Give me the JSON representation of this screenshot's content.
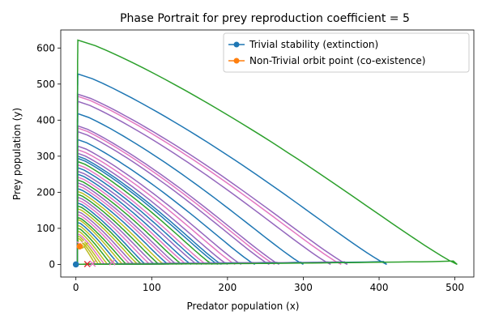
{
  "chart_data": {
    "type": "line",
    "title": "Phase Portrait for prey reproduction coefficient = 5",
    "xlabel": "Predator population (x)",
    "ylabel": "Prey population (y)",
    "xlim": [
      -20,
      525
    ],
    "ylim": [
      -35,
      650
    ],
    "xticks": [
      0,
      100,
      200,
      300,
      400,
      500
    ],
    "yticks": [
      0,
      100,
      200,
      300,
      400,
      500,
      600
    ],
    "grid": false,
    "legend_position": "top-right",
    "legend": [
      {
        "label": "Trivial stability (extinction)",
        "color": "#1f77b4",
        "marker": "circle"
      },
      {
        "label": "Non-Trivial orbit point (co-existence)",
        "color": "#ff7f0e",
        "marker": "circle"
      }
    ],
    "orbits": [
      {
        "color": "#2ca02c",
        "x_max": 503,
        "y_max": 622
      },
      {
        "color": "#1f77b4",
        "x_max": 410,
        "y_max": 528
      },
      {
        "color": "#9467bd",
        "x_max": 358,
        "y_max": 472
      },
      {
        "color": "#e377c2",
        "x_max": 350,
        "y_max": 466
      },
      {
        "color": "#9467bd",
        "x_max": 336,
        "y_max": 452
      },
      {
        "color": "#1f77b4",
        "x_max": 300,
        "y_max": 418
      },
      {
        "color": "#9467bd",
        "x_max": 268,
        "y_max": 384
      },
      {
        "color": "#e377c2",
        "x_max": 262,
        "y_max": 378
      },
      {
        "color": "#9467bd",
        "x_max": 255,
        "y_max": 368
      },
      {
        "color": "#1f77b4",
        "x_max": 236,
        "y_max": 346
      },
      {
        "color": "#9467bd",
        "x_max": 218,
        "y_max": 328
      },
      {
        "color": "#e377c2",
        "x_max": 210,
        "y_max": 318
      },
      {
        "color": "#9467bd",
        "x_max": 200,
        "y_max": 308
      },
      {
        "color": "#1f77b4",
        "x_max": 192,
        "y_max": 300
      },
      {
        "color": "#1f77b4",
        "x_max": 187,
        "y_max": 294
      },
      {
        "color": "#2ca02c",
        "x_max": 180,
        "y_max": 285
      },
      {
        "color": "#e377c2",
        "x_max": 172,
        "y_max": 276
      },
      {
        "color": "#1f77b4",
        "x_max": 166,
        "y_max": 268
      },
      {
        "color": "#9467bd",
        "x_max": 160,
        "y_max": 258
      },
      {
        "color": "#1f77b4",
        "x_max": 152,
        "y_max": 250
      },
      {
        "color": "#e377c2",
        "x_max": 146,
        "y_max": 242
      },
      {
        "color": "#2ca02c",
        "x_max": 140,
        "y_max": 234
      },
      {
        "color": "#9467bd",
        "x_max": 133,
        "y_max": 226
      },
      {
        "color": "#e377c2",
        "x_max": 128,
        "y_max": 218
      },
      {
        "color": "#1f77b4",
        "x_max": 122,
        "y_max": 210
      },
      {
        "color": "#bcbd22",
        "x_max": 116,
        "y_max": 202
      },
      {
        "color": "#2ca02c",
        "x_max": 110,
        "y_max": 194
      },
      {
        "color": "#9467bd",
        "x_max": 104,
        "y_max": 186
      },
      {
        "color": "#e377c2",
        "x_max": 98,
        "y_max": 178
      },
      {
        "color": "#1f77b4",
        "x_max": 92,
        "y_max": 170
      },
      {
        "color": "#2ca02c",
        "x_max": 87,
        "y_max": 162
      },
      {
        "color": "#bcbd22",
        "x_max": 82,
        "y_max": 154
      },
      {
        "color": "#9467bd",
        "x_max": 77,
        "y_max": 146
      },
      {
        "color": "#e377c2",
        "x_max": 72,
        "y_max": 138
      },
      {
        "color": "#2ca02c",
        "x_max": 67,
        "y_max": 130
      },
      {
        "color": "#bcbd22",
        "x_max": 62,
        "y_max": 124
      },
      {
        "color": "#1f77b4",
        "x_max": 57,
        "y_max": 116
      },
      {
        "color": "#bcbd22",
        "x_max": 52,
        "y_max": 108
      },
      {
        "color": "#2ca02c",
        "x_max": 47,
        "y_max": 100
      },
      {
        "color": "#bcbd22",
        "x_max": 42,
        "y_max": 92
      },
      {
        "color": "#e377c2",
        "x_max": 38,
        "y_max": 84
      },
      {
        "color": "#bcbd22",
        "x_max": 34,
        "y_max": 78
      },
      {
        "color": "#bcbd22",
        "x_max": 30,
        "y_max": 72
      },
      {
        "color": "#bcbd22",
        "x_max": 26,
        "y_max": 66
      }
    ],
    "points": [
      {
        "type": "trivial",
        "x": 0,
        "y": 0,
        "color": "#1f77b4",
        "marker": "circle"
      },
      {
        "type": "non-trivial",
        "x": 5,
        "y": 50,
        "color": "#ff7f0e",
        "marker": "circle"
      }
    ],
    "x_markers": [
      {
        "x": 5,
        "y": 55,
        "color": "#e377c2"
      },
      {
        "x": 8,
        "y": 58,
        "color": "#ffffff"
      },
      {
        "x": 12,
        "y": 52,
        "color": "#bcbd22"
      },
      {
        "x": 15,
        "y": 1,
        "color": "#d62728"
      },
      {
        "x": 22,
        "y": 2,
        "color": "#e377c2"
      },
      {
        "x": 48,
        "y": 6,
        "color": "#e377c2"
      }
    ]
  }
}
